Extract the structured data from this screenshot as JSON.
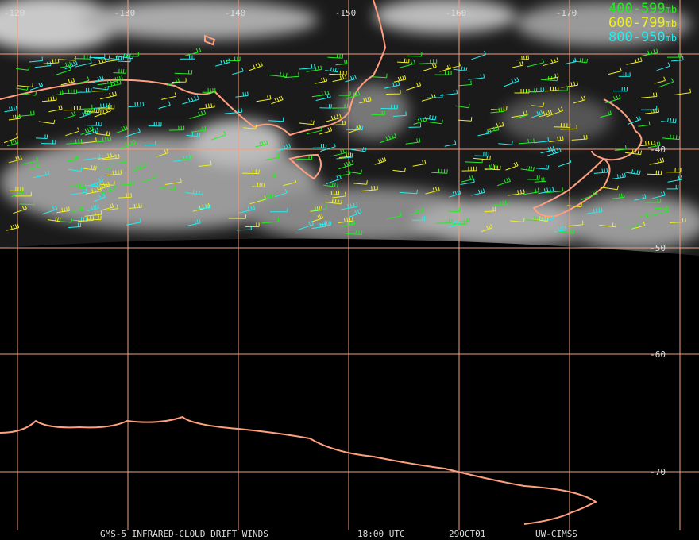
{
  "map": {
    "lon_labels": [
      "-120",
      "-130",
      "-140",
      "-150",
      "-160",
      "-170"
    ],
    "lat_labels": [
      "-40",
      "-50",
      "-60",
      "-70"
    ],
    "legend": [
      {
        "range": "400-599",
        "unit": "mb",
        "color": "#22ee22"
      },
      {
        "range": "600-799",
        "unit": "mb",
        "color": "#eeee22"
      },
      {
        "range": "800-950",
        "unit": "mb",
        "color": "#22eeee"
      }
    ],
    "footer": [
      "GMS-5 INFRARED-CLOUD DRIFT WINDS",
      "18:00 UTC",
      "29OCT01",
      "UW-CIMSS"
    ]
  }
}
